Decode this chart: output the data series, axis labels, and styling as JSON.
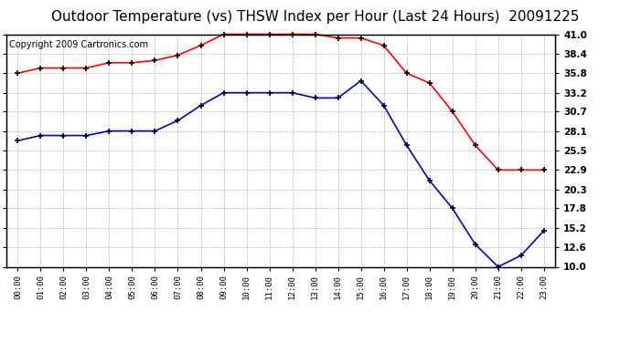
{
  "title": "Outdoor Temperature (vs) THSW Index per Hour (Last 24 Hours)  20091225",
  "copyright": "Copyright 2009 Cartronics.com",
  "hours": [
    "00:00",
    "01:00",
    "02:00",
    "03:00",
    "04:00",
    "05:00",
    "06:00",
    "07:00",
    "08:00",
    "09:00",
    "10:00",
    "11:00",
    "12:00",
    "13:00",
    "14:00",
    "15:00",
    "16:00",
    "17:00",
    "18:00",
    "19:00",
    "20:00",
    "21:00",
    "22:00",
    "23:00"
  ],
  "red_data": [
    35.8,
    36.5,
    36.5,
    36.5,
    37.2,
    37.2,
    37.5,
    38.2,
    39.5,
    41.0,
    41.0,
    41.0,
    41.0,
    41.0,
    40.5,
    40.5,
    39.5,
    35.8,
    34.5,
    30.7,
    26.2,
    22.9,
    22.9,
    22.9
  ],
  "blue_data": [
    26.8,
    27.5,
    27.5,
    27.5,
    28.1,
    28.1,
    28.1,
    29.5,
    31.5,
    33.2,
    33.2,
    33.2,
    33.2,
    32.5,
    32.5,
    34.8,
    31.5,
    26.2,
    21.5,
    17.8,
    13.0,
    10.0,
    11.5,
    14.8
  ],
  "red_color": "#ff0000",
  "blue_color": "#0000cc",
  "background_color": "#ffffff",
  "plot_background": "#ffffff",
  "grid_color": "#b0b0b0",
  "ylim": [
    10.0,
    41.0
  ],
  "yticks": [
    10.0,
    12.6,
    15.2,
    17.8,
    20.3,
    22.9,
    25.5,
    28.1,
    30.7,
    33.2,
    35.8,
    38.4,
    41.0
  ],
  "title_fontsize": 11,
  "copyright_fontsize": 7,
  "marker": "+",
  "marker_size": 5,
  "line_width": 1.2
}
